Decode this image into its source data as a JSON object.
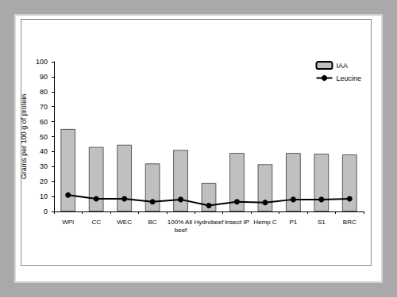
{
  "chart_data": {
    "type": "bar",
    "ylabel": "Grams per 100 g of protein",
    "categories": [
      "WPI",
      "CC",
      "WEC",
      "BC",
      "100% All beef",
      "Hydrobeef",
      "Insect IP",
      "Hemp C",
      "P1",
      "S1",
      "BRC"
    ],
    "series": [
      {
        "name": "IAA",
        "type": "bar",
        "color": "#c0c0c0",
        "values": [
          55,
          43,
          44.5,
          32,
          41,
          19,
          39,
          31.5,
          39,
          38.5,
          38
        ]
      },
      {
        "name": "Leucine",
        "type": "line",
        "color": "#000000",
        "marker": "circle",
        "values": [
          11,
          8.5,
          8.5,
          6.5,
          8,
          4,
          6.5,
          6,
          8,
          8,
          8.5
        ]
      }
    ],
    "ylim": [
      0,
      100
    ],
    "yticks": [
      0,
      10,
      20,
      30,
      40,
      50,
      60,
      70,
      80,
      90,
      100
    ],
    "grid": false,
    "legend": "upper right"
  }
}
